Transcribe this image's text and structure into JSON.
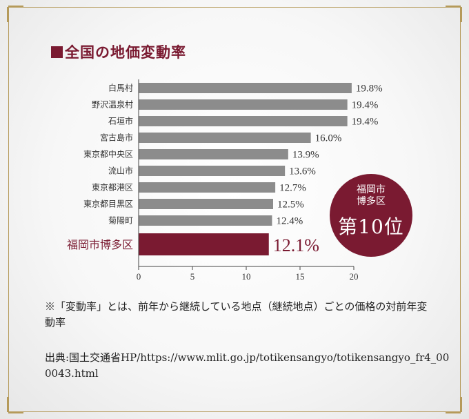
{
  "title": "全国の地価変動率",
  "chart_data": {
    "type": "bar",
    "orientation": "horizontal",
    "categories": [
      "白馬村",
      "野沢温泉村",
      "石垣市",
      "宮古島市",
      "東京都中央区",
      "流山市",
      "東京都港区",
      "東京都目黒区",
      "菊陽町",
      "福岡市博多区"
    ],
    "values": [
      19.8,
      19.4,
      19.4,
      16.0,
      13.9,
      13.6,
      12.7,
      12.5,
      12.4,
      12.1
    ],
    "value_labels": [
      "19.8%",
      "19.4%",
      "19.4%",
      "16.0%",
      "13.9%",
      "13.6%",
      "12.7%",
      "12.5%",
      "12.4%",
      "12.1%"
    ],
    "highlight": "福岡市博多区",
    "xlim": [
      0,
      20
    ],
    "xticks": [
      0,
      5,
      10,
      15,
      20
    ],
    "bar_color": "#8c8c8c",
    "highlight_color": "#7a1a31"
  },
  "badge": {
    "line1": "福岡市",
    "line2": "博多区",
    "rank": "第10位"
  },
  "note": "※「変動率」とは、前年から継続している地点（継続地点）ごとの価格の対前年変動率",
  "source": "出典:国土交通省HP/https://www.mlit.go.jp/totikensangyo/totikensangyo_fr4_000043.html"
}
